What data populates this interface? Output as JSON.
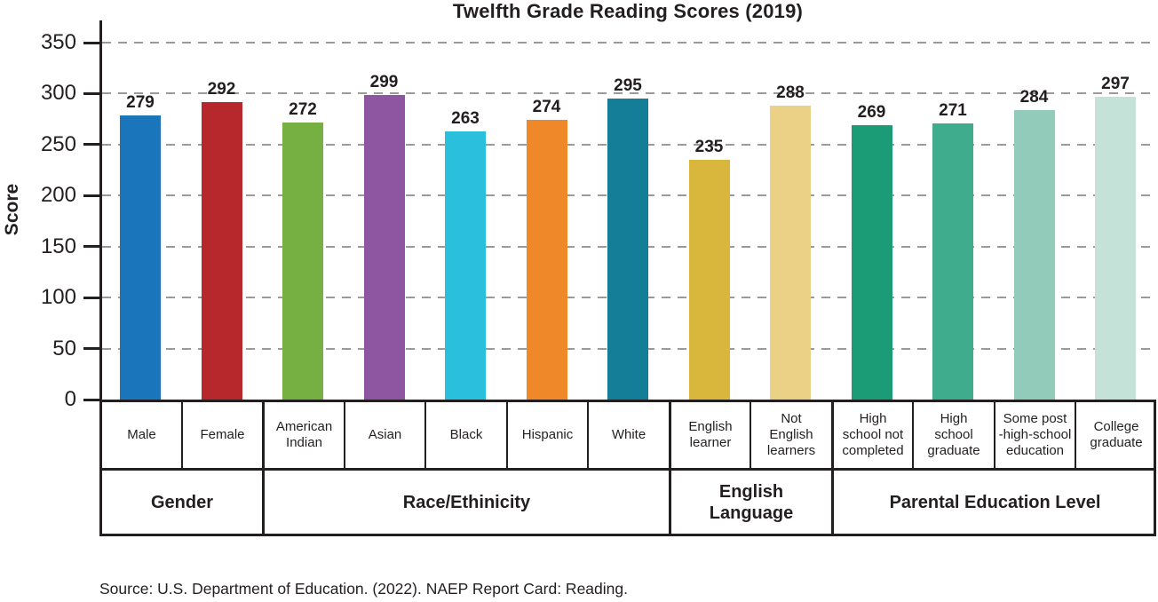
{
  "title": "Twelfth Grade Reading Scores (2019)",
  "y_axis": {
    "label": "Score",
    "ticks": [
      0,
      50,
      100,
      150,
      200,
      250,
      300,
      350
    ]
  },
  "source": "Source: U.S. Department of Education. (2022). NAEP Report Card: Reading.",
  "colors": {
    "axis": "#231F20",
    "gridline": "#9A9A9A",
    "text": "#231F20",
    "background": "#FFFFFF"
  },
  "chart_data": {
    "type": "bar",
    "title": "Twelfth Grade Reading Scores (2019)",
    "xlabel": "",
    "ylabel": "Score",
    "ylim": [
      0,
      350
    ],
    "ytick_interval": 50,
    "grid": "horizontal-dashed",
    "legend": "none",
    "categories": [
      "Male",
      "Female",
      "American Indian",
      "Asian",
      "Black",
      "Hispanic",
      "White",
      "English learner",
      "Not English learners",
      "High school not completed",
      "High school graduate",
      "Some post-high-school education",
      "College graduate"
    ],
    "values": [
      279,
      292,
      272,
      299,
      263,
      274,
      295,
      235,
      288,
      269,
      271,
      284,
      297
    ],
    "bars": [
      {
        "label": "Male",
        "display": "Male",
        "value": 279,
        "color": "#1B75BB",
        "group": "Gender"
      },
      {
        "label": "Female",
        "display": "Female",
        "value": 292,
        "color": "#B7282C",
        "group": "Gender"
      },
      {
        "label": "American Indian",
        "display": "American\nIndian",
        "value": 272,
        "color": "#76B043",
        "group": "Race/Ethinicity"
      },
      {
        "label": "Asian",
        "display": "Asian",
        "value": 299,
        "color": "#8E56A0",
        "group": "Race/Ethinicity"
      },
      {
        "label": "Black",
        "display": "Black",
        "value": 263,
        "color": "#2BBFDE",
        "group": "Race/Ethinicity"
      },
      {
        "label": "Hispanic",
        "display": "Hispanic",
        "value": 274,
        "color": "#EF8829",
        "group": "Race/Ethinicity"
      },
      {
        "label": "White",
        "display": "White",
        "value": 295,
        "color": "#147E98",
        "group": "Race/Ethinicity"
      },
      {
        "label": "English learner",
        "display": "English\nlearner",
        "value": 235,
        "color": "#D9B73C",
        "group": "English Language"
      },
      {
        "label": "Not English learners",
        "display": "Not\nEnglish\nlearners",
        "value": 288,
        "color": "#EAD185",
        "group": "English Language"
      },
      {
        "label": "High school not completed",
        "display": "High\nschool not\ncompleted",
        "value": 269,
        "color": "#1B9C77",
        "group": "Parental Education Level"
      },
      {
        "label": "High school graduate",
        "display": "High\nschool\ngraduate",
        "value": 271,
        "color": "#40AC8E",
        "group": "Parental Education Level"
      },
      {
        "label": "Some post-high-school education",
        "display": "Some post\n-high-school\neducation",
        "value": 284,
        "color": "#92CBB9",
        "group": "Parental Education Level"
      },
      {
        "label": "College graduate",
        "display": "College\ngraduate",
        "value": 297,
        "color": "#C4E2D8",
        "group": "Parental Education Level"
      }
    ],
    "groups": [
      {
        "label": "Gender",
        "display": "Gender",
        "span": 2
      },
      {
        "label": "Race/Ethinicity",
        "display": "Race/Ethinicity",
        "span": 5
      },
      {
        "label": "English Language",
        "display": "English\nLanguage",
        "span": 2
      },
      {
        "label": "Parental Education Level",
        "display": "Parental Education Level",
        "span": 4
      }
    ]
  }
}
